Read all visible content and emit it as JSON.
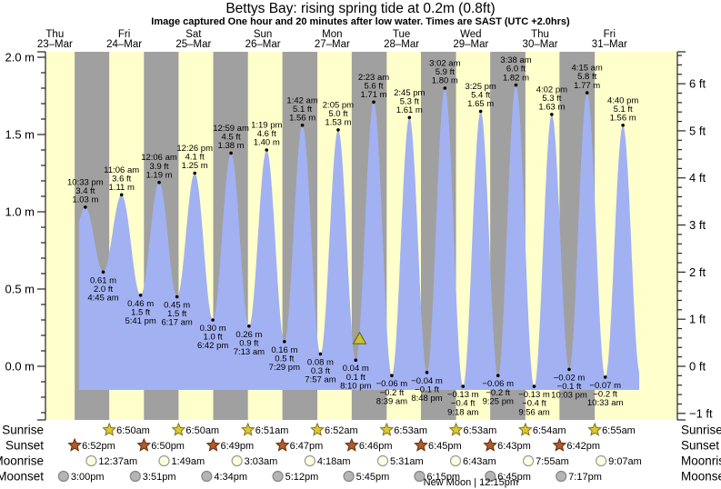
{
  "header": {
    "title": "Bettys Bay: rising  spring tide at 0.2m (0.8ft)",
    "subtitle": "Image captured One hour and 20 minutes after low water. Times are SAST (UTC +2.0hrs)"
  },
  "colors": {
    "day_band": "#ffffcc",
    "night_band": "#a0a0a0",
    "tide_fill": "#a2b1f2",
    "date_red": "#ee3333",
    "axis": "#222222",
    "sunrise_star_fill": "#dcc930",
    "sunrise_star_stroke": "#83711a",
    "sunset_star_fill": "#b25a28",
    "sunset_star_stroke": "#5f2d10",
    "moonrise_fill": "#ffffe0",
    "moonrise_stroke": "#999999",
    "moonset_fill": "#b5b5b5",
    "moonset_stroke": "#858585",
    "now_marker_fill": "#c9c233",
    "now_marker_stroke": "#6e6a15"
  },
  "chart_data": {
    "type": "area",
    "title": "Bettys Bay: rising  spring tide at 0.2m (0.8ft)",
    "x_axis_days": [
      {
        "name": "Thu",
        "date": "23–Mar"
      },
      {
        "name": "Fri",
        "date": "24–Mar"
      },
      {
        "name": "Sat",
        "date": "25–Mar"
      },
      {
        "name": "Sun",
        "date": "26–Mar"
      },
      {
        "name": "Mon",
        "date": "27–Mar"
      },
      {
        "name": "Tue",
        "date": "28–Mar"
      },
      {
        "name": "Wed",
        "date": "29–Mar"
      },
      {
        "name": "Thu",
        "date": "30–Mar"
      },
      {
        "name": "Fri",
        "date": "31–Mar"
      }
    ],
    "y_axis_left": {
      "unit": "m",
      "major_ticks": [
        2.0,
        1.5,
        1.0,
        0.5,
        0.0
      ],
      "minor_step": 0.1
    },
    "y_axis_right": {
      "unit": "ft",
      "major_ticks": [
        6,
        5,
        4,
        3,
        2,
        1,
        0,
        -1
      ],
      "minor_step": 0.2
    },
    "tide_extremes": [
      {
        "day": 0,
        "time": "10:33 pm",
        "type": "high",
        "m": 1.03,
        "ft": 3.4
      },
      {
        "day": 1,
        "time": "4:45 am",
        "type": "low",
        "m": 0.61,
        "ft": 2.0
      },
      {
        "day": 1,
        "time": "11:06 am",
        "type": "high",
        "m": 1.11,
        "ft": 3.6
      },
      {
        "day": 1,
        "time": "5:41 pm",
        "type": "low",
        "m": 0.46,
        "ft": 1.5
      },
      {
        "day": 2,
        "time": "12:06 am",
        "type": "high",
        "m": 1.19,
        "ft": 3.9
      },
      {
        "day": 2,
        "time": "6:17 am",
        "type": "low",
        "m": 0.45,
        "ft": 1.5
      },
      {
        "day": 2,
        "time": "12:26 pm",
        "type": "high",
        "m": 1.25,
        "ft": 4.1
      },
      {
        "day": 2,
        "time": "6:42 pm",
        "type": "low",
        "m": 0.3,
        "ft": 1.0
      },
      {
        "day": 3,
        "time": "12:59 am",
        "type": "high",
        "m": 1.38,
        "ft": 4.5
      },
      {
        "day": 3,
        "time": "7:13 am",
        "type": "low",
        "m": 0.26,
        "ft": 0.9
      },
      {
        "day": 3,
        "time": "1:19 pm",
        "type": "high",
        "m": 1.4,
        "ft": 4.6
      },
      {
        "day": 3,
        "time": "7:29 pm",
        "type": "low",
        "m": 0.16,
        "ft": 0.5
      },
      {
        "day": 4,
        "time": "1:42 am",
        "type": "high",
        "m": 1.56,
        "ft": 5.1
      },
      {
        "day": 4,
        "time": "7:57 am",
        "type": "low",
        "m": 0.08,
        "ft": 0.3
      },
      {
        "day": 4,
        "time": "2:05 pm",
        "type": "high",
        "m": 1.53,
        "ft": 5.0
      },
      {
        "day": 4,
        "time": "8:10 pm",
        "type": "low",
        "m": 0.04,
        "ft": 0.1
      },
      {
        "day": 5,
        "time": "2:23 am",
        "type": "high",
        "m": 1.71,
        "ft": 5.6
      },
      {
        "day": 5,
        "time": "8:39 am",
        "type": "low",
        "m": -0.06,
        "ft": -0.2
      },
      {
        "day": 5,
        "time": "2:45 pm",
        "type": "high",
        "m": 1.61,
        "ft": 5.3
      },
      {
        "day": 5,
        "time": "8:48 pm",
        "type": "low",
        "m": -0.04,
        "ft": -0.1
      },
      {
        "day": 6,
        "time": "3:02 am",
        "type": "high",
        "m": 1.8,
        "ft": 5.9
      },
      {
        "day": 6,
        "time": "9:18 am",
        "type": "low",
        "m": -0.13,
        "ft": -0.4
      },
      {
        "day": 6,
        "time": "3:25 pm",
        "type": "high",
        "m": 1.65,
        "ft": 5.4
      },
      {
        "day": 6,
        "time": "9:25 pm",
        "type": "low",
        "m": -0.06,
        "ft": -0.2
      },
      {
        "day": 7,
        "time": "3:38 am",
        "type": "high",
        "m": 1.82,
        "ft": 6.0
      },
      {
        "day": 7,
        "time": "9:56 am",
        "type": "low",
        "m": -0.13,
        "ft": -0.4
      },
      {
        "day": 7,
        "time": "4:02 pm",
        "type": "high",
        "m": 1.63,
        "ft": 5.3
      },
      {
        "day": 7,
        "time": "10:03 pm",
        "type": "low",
        "m": -0.02,
        "ft": -0.1
      },
      {
        "day": 8,
        "time": "4:15 am",
        "type": "high",
        "m": 1.77,
        "ft": 5.8
      },
      {
        "day": 8,
        "time": "10:33 am",
        "type": "low",
        "m": -0.07,
        "ft": -0.2
      },
      {
        "day": 8,
        "time": "4:40 pm",
        "type": "high",
        "m": 1.56,
        "ft": 5.1
      }
    ],
    "curve_padding": [
      {
        "t_hours": 15.9,
        "m": 0.62
      },
      {
        "t_hours": 214.6,
        "m": -0.05
      }
    ],
    "fill_range_hours": [
      20.35,
      214.3
    ],
    "now_marker": {
      "day": 4,
      "time": "9:30 pm",
      "note": "One hour and 20 minutes after low water"
    }
  },
  "astro": {
    "rows": [
      {
        "label": "Sunrise",
        "icon": "sunrise-star-icon",
        "entries": [
          {
            "day": 1,
            "time": "6:50am"
          },
          {
            "day": 2,
            "time": "6:50am"
          },
          {
            "day": 3,
            "time": "6:51am"
          },
          {
            "day": 4,
            "time": "6:52am"
          },
          {
            "day": 5,
            "time": "6:53am"
          },
          {
            "day": 6,
            "time": "6:53am"
          },
          {
            "day": 7,
            "time": "6:54am"
          },
          {
            "day": 8,
            "time": "6:55am"
          }
        ]
      },
      {
        "label": "Sunset",
        "icon": "sunset-star-icon",
        "entries": [
          {
            "day": 0,
            "time": "6:52pm"
          },
          {
            "day": 1,
            "time": "6:50pm"
          },
          {
            "day": 2,
            "time": "6:49pm"
          },
          {
            "day": 3,
            "time": "6:47pm"
          },
          {
            "day": 4,
            "time": "6:46pm"
          },
          {
            "day": 5,
            "time": "6:45pm"
          },
          {
            "day": 6,
            "time": "6:43pm"
          },
          {
            "day": 7,
            "time": "6:42pm"
          }
        ]
      },
      {
        "label": "Moonrise",
        "icon": "moonrise-circle-icon",
        "entries": [
          {
            "day": 1,
            "time": "12:37am"
          },
          {
            "day": 2,
            "time": "1:49am"
          },
          {
            "day": 3,
            "time": "3:03am"
          },
          {
            "day": 4,
            "time": "4:18am"
          },
          {
            "day": 5,
            "time": "5:31am"
          },
          {
            "day": 6,
            "time": "6:43am"
          },
          {
            "day": 7,
            "time": "7:55am"
          },
          {
            "day": 8,
            "time": "9:07am"
          }
        ]
      },
      {
        "label": "Moonset",
        "icon": "moonset-circle-icon",
        "entries": [
          {
            "day": 0,
            "time": "3:00pm"
          },
          {
            "day": 1,
            "time": "3:51pm"
          },
          {
            "day": 2,
            "time": "4:34pm"
          },
          {
            "day": 3,
            "time": "5:12pm"
          },
          {
            "day": 4,
            "time": "5:45pm"
          },
          {
            "day": 5,
            "time": "6:15pm"
          },
          {
            "day": 6,
            "time": "6:45pm"
          },
          {
            "day": 7,
            "time": "7:17pm"
          }
        ]
      }
    ],
    "new_moon": {
      "text": "New Moon | 12:15pm",
      "day": 6
    }
  }
}
